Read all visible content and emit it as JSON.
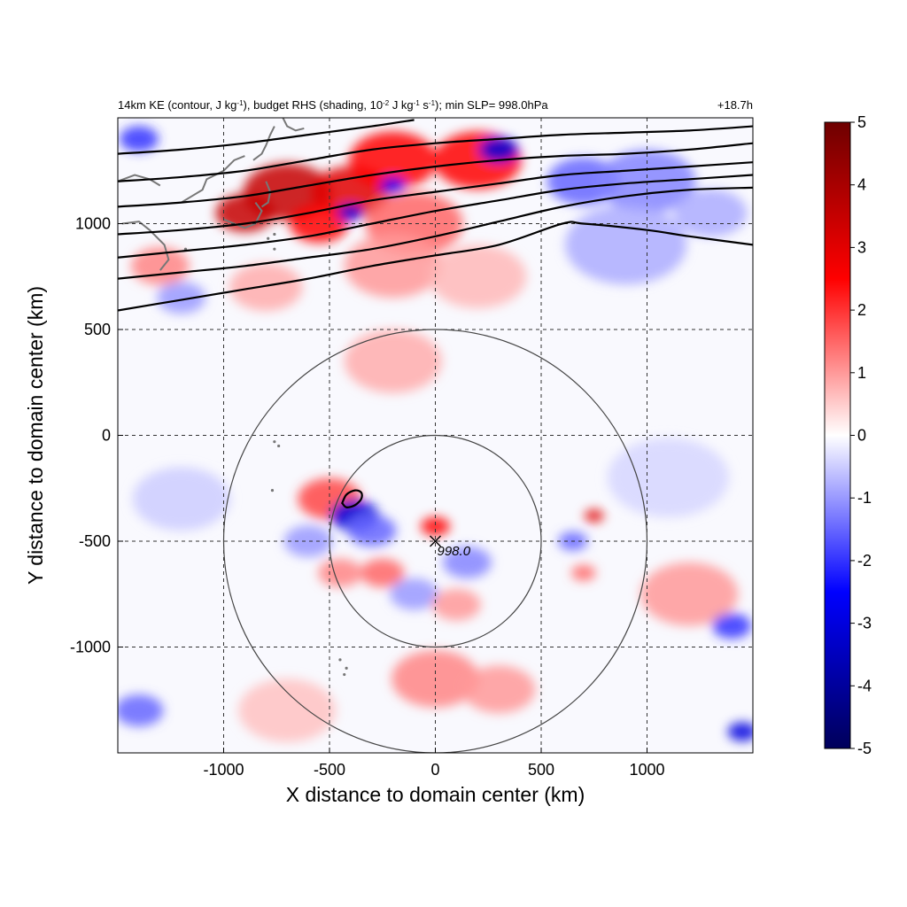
{
  "chart_data": {
    "type": "heatmap",
    "title_parts": {
      "a": "14km KE (contour, J kg",
      "a_sup": "-1",
      "b": "), budget RHS (shading, 10",
      "b_sup": "-2",
      "c": " J kg",
      "c_sup": "-1",
      "d": " s",
      "d_sup": "-1",
      "e": "); min SLP= 998.0hPa"
    },
    "time_label": "+18.7h",
    "xlabel": "X distance to domain center (km)",
    "ylabel": "Y distance to domain center (km)",
    "xlim": [
      -1500,
      1500
    ],
    "ylim": [
      -1500,
      1500
    ],
    "x_ticks": [
      -1000,
      -500,
      0,
      500,
      1000
    ],
    "y_ticks": [
      -1000,
      -500,
      0,
      500,
      1000
    ],
    "x_tick_labels": [
      "-1000",
      "-500",
      "0",
      "500",
      "1000"
    ],
    "y_tick_labels": [
      "-1000",
      "-500",
      "0",
      "500",
      "1000"
    ],
    "grid": "dashed",
    "colorbar": {
      "range": [
        -5,
        5
      ],
      "ticks": [
        5,
        4,
        3,
        2,
        1,
        0,
        -1,
        -2,
        -3,
        -4,
        -5
      ],
      "tick_labels": [
        "5",
        "4",
        "3",
        "2",
        "1",
        "0",
        "-1",
        "-2",
        "-3",
        "-4",
        "-5"
      ],
      "colormap": [
        "#00005a",
        "#0000ff",
        "#ffffff",
        "#ff0000",
        "#6e0000"
      ],
      "position": "right"
    },
    "center": {
      "x": 0,
      "y": -500,
      "label": "998.0"
    },
    "range_circles_km": [
      500,
      1000
    ],
    "ke_contours": [
      [
        [
          -1500,
          590
        ],
        [
          -1200,
          640
        ],
        [
          -900,
          690
        ],
        [
          -600,
          740
        ],
        [
          -300,
          800
        ],
        [
          0,
          850
        ],
        [
          300,
          900
        ],
        [
          600,
          1000
        ],
        [
          700,
          1000
        ],
        [
          1000,
          970
        ],
        [
          1200,
          940
        ],
        [
          1500,
          900
        ]
      ],
      [
        [
          -1500,
          740
        ],
        [
          -1200,
          770
        ],
        [
          -900,
          800
        ],
        [
          -600,
          840
        ],
        [
          -300,
          880
        ],
        [
          0,
          940
        ],
        [
          300,
          1010
        ],
        [
          600,
          1080
        ],
        [
          900,
          1130
        ],
        [
          1200,
          1160
        ],
        [
          1500,
          1170
        ]
      ],
      [
        [
          -1500,
          840
        ],
        [
          -1200,
          870
        ],
        [
          -900,
          900
        ],
        [
          -600,
          940
        ],
        [
          -300,
          1000
        ],
        [
          0,
          1060
        ],
        [
          300,
          1110
        ],
        [
          600,
          1160
        ],
        [
          900,
          1190
        ],
        [
          1200,
          1210
        ],
        [
          1500,
          1230
        ]
      ],
      [
        [
          -1500,
          950
        ],
        [
          -1200,
          970
        ],
        [
          -900,
          1000
        ],
        [
          -600,
          1050
        ],
        [
          -300,
          1110
        ],
        [
          0,
          1150
        ],
        [
          300,
          1190
        ],
        [
          600,
          1230
        ],
        [
          900,
          1250
        ],
        [
          1200,
          1270
        ],
        [
          1500,
          1290
        ]
      ],
      [
        [
          -1500,
          1080
        ],
        [
          -1200,
          1100
        ],
        [
          -900,
          1130
        ],
        [
          -600,
          1180
        ],
        [
          -300,
          1230
        ],
        [
          0,
          1270
        ],
        [
          300,
          1300
        ],
        [
          600,
          1320
        ],
        [
          900,
          1330
        ],
        [
          1200,
          1350
        ],
        [
          1500,
          1380
        ]
      ],
      [
        [
          -1500,
          1200
        ],
        [
          -1200,
          1220
        ],
        [
          -900,
          1250
        ],
        [
          -600,
          1300
        ],
        [
          -300,
          1350
        ],
        [
          0,
          1380
        ],
        [
          300,
          1400
        ],
        [
          600,
          1420
        ],
        [
          900,
          1430
        ],
        [
          1200,
          1440
        ],
        [
          1500,
          1460
        ]
      ],
      [
        [
          -1500,
          1330
        ],
        [
          -1200,
          1350
        ],
        [
          -900,
          1380
        ],
        [
          -600,
          1420
        ],
        [
          -300,
          1460
        ],
        [
          -100,
          1490
        ]
      ]
    ],
    "ke_small_contour": [
      [
        -440,
        -320
      ],
      [
        -420,
        -280
      ],
      [
        -380,
        -260
      ],
      [
        -350,
        -270
      ],
      [
        -350,
        -300
      ],
      [
        -380,
        -330
      ],
      [
        -420,
        -340
      ],
      [
        -440,
        -320
      ]
    ],
    "shading_features": [
      {
        "x": -700,
        "y": 1150,
        "v": 3.5,
        "r": 180
      },
      {
        "x": -400,
        "y": 1150,
        "v": 3.0,
        "r": 160
      },
      {
        "x": -900,
        "y": 1050,
        "v": 3.5,
        "r": 120
      },
      {
        "x": -200,
        "y": 1300,
        "v": 2.5,
        "r": 180
      },
      {
        "x": 200,
        "y": 1300,
        "v": 2.5,
        "r": 180
      },
      {
        "x": -550,
        "y": 1000,
        "v": 2.5,
        "r": 120
      },
      {
        "x": -100,
        "y": 1000,
        "v": 1.5,
        "r": 200
      },
      {
        "x": -1400,
        "y": 1400,
        "v": -2.0,
        "r": 80
      },
      {
        "x": -400,
        "y": 1050,
        "v": -3.0,
        "r": 50
      },
      {
        "x": -200,
        "y": 1180,
        "v": -2.5,
        "r": 50
      },
      {
        "x": 300,
        "y": 1350,
        "v": -3.0,
        "r": 80
      },
      {
        "x": 700,
        "y": 1200,
        "v": -1.5,
        "r": 150
      },
      {
        "x": 1000,
        "y": 1200,
        "v": -1.2,
        "r": 200
      },
      {
        "x": 900,
        "y": 900,
        "v": -0.8,
        "r": 250
      },
      {
        "x": 1300,
        "y": 1050,
        "v": -0.8,
        "r": 150
      },
      {
        "x": -200,
        "y": 800,
        "v": 1.0,
        "r": 200
      },
      {
        "x": 200,
        "y": 750,
        "v": 0.7,
        "r": 200
      },
      {
        "x": -800,
        "y": 700,
        "v": 0.8,
        "r": 150
      },
      {
        "x": -1300,
        "y": 800,
        "v": 1.2,
        "r": 120
      },
      {
        "x": -1200,
        "y": 650,
        "v": -1.0,
        "r": 100
      },
      {
        "x": -200,
        "y": 350,
        "v": 0.8,
        "r": 200
      },
      {
        "x": -500,
        "y": -300,
        "v": 1.8,
        "r": 130
      },
      {
        "x": -380,
        "y": -380,
        "v": -3.0,
        "r": 100
      },
      {
        "x": -300,
        "y": -450,
        "v": -1.5,
        "r": 100
      },
      {
        "x": -600,
        "y": -500,
        "v": -1.0,
        "r": 100
      },
      {
        "x": 0,
        "y": -430,
        "v": 2.5,
        "r": 60
      },
      {
        "x": -250,
        "y": -650,
        "v": 1.5,
        "r": 90
      },
      {
        "x": -450,
        "y": -650,
        "v": 1.2,
        "r": 90
      },
      {
        "x": 150,
        "y": -600,
        "v": -1.2,
        "r": 100
      },
      {
        "x": -100,
        "y": -750,
        "v": -1.0,
        "r": 100
      },
      {
        "x": 100,
        "y": -800,
        "v": 1.0,
        "r": 100
      },
      {
        "x": 750,
        "y": -380,
        "v": 3.0,
        "r": 40
      },
      {
        "x": 650,
        "y": -500,
        "v": -1.5,
        "r": 60
      },
      {
        "x": 700,
        "y": -650,
        "v": 1.5,
        "r": 50
      },
      {
        "x": 1200,
        "y": -750,
        "v": 1.0,
        "r": 200
      },
      {
        "x": 1400,
        "y": -900,
        "v": -2.0,
        "r": 80
      },
      {
        "x": 1450,
        "y": -1400,
        "v": -3.0,
        "r": 60
      },
      {
        "x": -1400,
        "y": -1300,
        "v": -1.5,
        "r": 100
      },
      {
        "x": 0,
        "y": -1150,
        "v": 1.2,
        "r": 180
      },
      {
        "x": 300,
        "y": -1200,
        "v": 1.0,
        "r": 150
      },
      {
        "x": -700,
        "y": -1300,
        "v": 0.6,
        "r": 200
      },
      {
        "x": -1200,
        "y": -300,
        "v": -0.5,
        "r": 200
      },
      {
        "x": 1100,
        "y": -200,
        "v": -0.4,
        "r": 250
      }
    ],
    "coastlines": [
      [
        [
          -1500,
          1200
        ],
        [
          -1420,
          1230
        ],
        [
          -1350,
          1210
        ],
        [
          -1300,
          1180
        ]
      ],
      [
        [
          -1200,
          1100
        ],
        [
          -1150,
          1130
        ],
        [
          -1100,
          1160
        ],
        [
          -1080,
          1210
        ],
        [
          -1000,
          1250
        ],
        [
          -950,
          1300
        ],
        [
          -900,
          1320
        ]
      ],
      [
        [
          -1480,
          1000
        ],
        [
          -1400,
          1010
        ],
        [
          -1350,
          970
        ],
        [
          -1280,
          900
        ],
        [
          -1260,
          830
        ],
        [
          -1300,
          780
        ]
      ],
      [
        [
          -1000,
          1020
        ],
        [
          -950,
          1000
        ],
        [
          -900,
          980
        ],
        [
          -850,
          1000
        ],
        [
          -820,
          1060
        ],
        [
          -850,
          1100
        ]
      ],
      [
        [
          -860,
          1300
        ],
        [
          -820,
          1330
        ],
        [
          -800,
          1370
        ],
        [
          -780,
          1420
        ],
        [
          -760,
          1460
        ]
      ],
      [
        [
          -720,
          1500
        ],
        [
          -700,
          1460
        ],
        [
          -660,
          1440
        ],
        [
          -620,
          1450
        ]
      ],
      [
        [
          -800,
          1200
        ],
        [
          -780,
          1150
        ],
        [
          -790,
          1100
        ],
        [
          -820,
          1080
        ]
      ]
    ],
    "coastline_specks": [
      [
        -760,
        880
      ],
      [
        -790,
        930
      ],
      [
        -760,
        950
      ],
      [
        -1180,
        880
      ],
      [
        -760,
        -30
      ],
      [
        -740,
        -50
      ],
      [
        -770,
        -260
      ],
      [
        -420,
        -1100
      ],
      [
        -450,
        -1060
      ],
      [
        -430,
        -1130
      ]
    ]
  }
}
